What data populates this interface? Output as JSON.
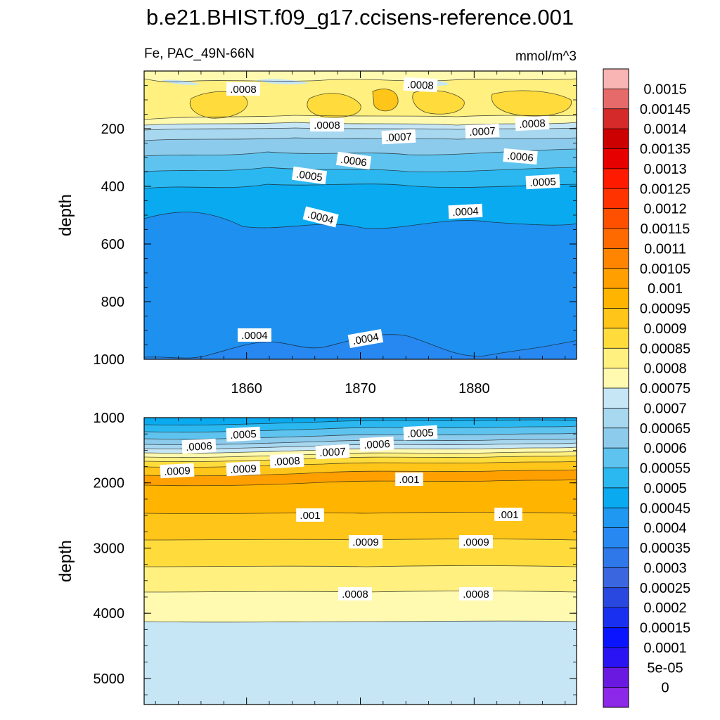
{
  "chart_data": {
    "type": "contour",
    "title": "b.e21.BHIST.f09_g17.ccisens-reference.001",
    "variable_label": "Fe, PAC_49N-66N",
    "units": "mmol/m^3",
    "colorbar": {
      "levels": [
        "0.0015",
        "0.00145",
        "0.0014",
        "0.00135",
        "0.0013",
        "0.00125",
        "0.0012",
        "0.00115",
        "0.0011",
        "0.00105",
        "0.001",
        "0.00095",
        "0.0009",
        "0.00085",
        "0.0008",
        "0.00075",
        "0.0007",
        "0.00065",
        "0.0006",
        "0.00055",
        "0.0005",
        "0.00045",
        "0.0004",
        "0.00035",
        "0.0003",
        "0.00025",
        "0.0002",
        "0.00015",
        "0.0001",
        "5e-05",
        "0"
      ],
      "colors": [
        "#f9b4b4",
        "#e66a6a",
        "#d42a2a",
        "#cc0000",
        "#e60000",
        "#ff1a00",
        "#ff3300",
        "#ff5000",
        "#ff6a00",
        "#ff8400",
        "#ffa000",
        "#ffb400",
        "#ffc519",
        "#ffdc3c",
        "#fff07f",
        "#fffab0",
        "#c6e6f5",
        "#a8d8f0",
        "#8ccbec",
        "#5ec4ef",
        "#2bb8f0",
        "#0aaaf0",
        "#1e98f0",
        "#2688f0",
        "#2f78ea",
        "#3a66e0",
        "#2848e0",
        "#1a30f0",
        "#0a14ff",
        "#2a14f4",
        "#6a1ae0",
        "#8c28e8"
      ]
    },
    "panels": [
      {
        "name": "upper",
        "ylabel": "depth",
        "ylim": [
          0,
          1000
        ],
        "yticks": [
          "200",
          "400",
          "600",
          "800",
          "1000"
        ],
        "xlim": [
          1851,
          1889
        ],
        "xticks": [
          "1860",
          "1870",
          "1880"
        ],
        "contour_labels": [
          ".0008",
          ".0008",
          ".0008",
          ".0007",
          ".0007",
          ".0008",
          ".0006",
          ".0006",
          ".0005",
          ".0005",
          ".0004",
          ".0004",
          ".0004",
          ".0004"
        ]
      },
      {
        "name": "lower",
        "ylabel": "depth",
        "ylim": [
          1000,
          5400
        ],
        "yticks": [
          "1000",
          "2000",
          "3000",
          "4000",
          "5000"
        ],
        "xlim": [
          1851,
          1889
        ],
        "contour_labels": [
          ".0005",
          ".0005",
          ".0006",
          ".0006",
          ".0007",
          ".0008",
          ".0009",
          ".0009",
          ".001",
          ".001",
          ".001",
          ".0009",
          ".0009",
          ".0008",
          ".0008"
        ]
      }
    ]
  }
}
